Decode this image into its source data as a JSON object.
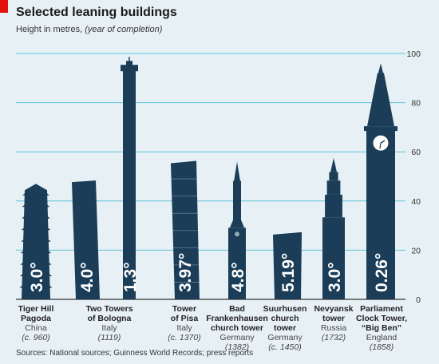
{
  "title": "Selected leaning buildings",
  "subtitle": {
    "main": "Height in metres,",
    "note": "(year of completion)"
  },
  "source": "Sources: National sources; Guinness World Records; press reports",
  "colors": {
    "background": "#e7f1f5",
    "building": "#1b3d58",
    "grid": "#5bc3d6",
    "angle_text": "#ffffff",
    "accent": "#e3120b"
  },
  "chart_data": {
    "type": "bar",
    "title": "Selected leaning buildings",
    "ylabel": "Height in metres, (year of completion)",
    "ylim": [
      0,
      100
    ],
    "yticks": [
      0,
      20,
      40,
      60,
      80,
      100
    ],
    "grid": true,
    "groups": [
      {
        "name": "Tiger Hill Pagoda",
        "country": "China",
        "year": "(c. 960)",
        "buildings": [
          {
            "height": 47,
            "lean": "3.0°",
            "shape": "pagoda"
          }
        ]
      },
      {
        "name": "Two Towers of Bologna",
        "country": "Italy",
        "year": "(1119)",
        "buildings": [
          {
            "height": 48,
            "lean": "4.0°",
            "shape": "tower"
          },
          {
            "height": 97,
            "lean": "1.3°",
            "shape": "asinelli"
          }
        ]
      },
      {
        "name": "Tower of Pisa",
        "country": "Italy",
        "year": "(c. 1370)",
        "buildings": [
          {
            "height": 56,
            "lean": "3.97°",
            "shape": "pisa"
          }
        ]
      },
      {
        "name": "Bad Frankenhausen church tower",
        "country": "Germany",
        "year": "(1382)",
        "buildings": [
          {
            "height": 56,
            "lean": "4.8°",
            "shape": "spire"
          }
        ]
      },
      {
        "name": "Suurhusen church tower",
        "country": "Germany",
        "year": "(c. 1450)",
        "buildings": [
          {
            "height": 27,
            "lean": "5.19°",
            "shape": "block"
          }
        ]
      },
      {
        "name": "Nevyansk tower",
        "country": "Russia",
        "year": "(1732)",
        "buildings": [
          {
            "height": 57.5,
            "lean": "3.0°",
            "shape": "nevyansk"
          }
        ]
      },
      {
        "name": "Parliament Clock Tower, “Big Ben”",
        "country": "England",
        "year": "(1858)",
        "buildings": [
          {
            "height": 96,
            "lean": "0.26°",
            "shape": "bigben"
          }
        ]
      }
    ]
  },
  "labels": [
    {
      "name": [
        "Tiger Hill",
        "Pagoda"
      ],
      "country": "China",
      "year": "(c. 960)"
    },
    {
      "name": [
        "Two Towers",
        "of Bologna"
      ],
      "country": "Italy",
      "year": "(1119)"
    },
    {
      "name": [
        "Tower",
        "of Pisa"
      ],
      "country": "Italy",
      "year": "(c. 1370)"
    },
    {
      "name": [
        "Bad",
        "Frankenhausen",
        "church tower"
      ],
      "country": "Germany",
      "year": "(1382)"
    },
    {
      "name": [
        "Suurhusen",
        "church",
        "tower"
      ],
      "country": "Germany",
      "year": "(c. 1450)"
    },
    {
      "name": [
        "Nevyansk",
        "tower"
      ],
      "country": "Russia",
      "year": "(1732)"
    },
    {
      "name": [
        "Parliament",
        "Clock Tower,",
        "“Big Ben”"
      ],
      "country": "England",
      "year": "(1858)"
    }
  ]
}
